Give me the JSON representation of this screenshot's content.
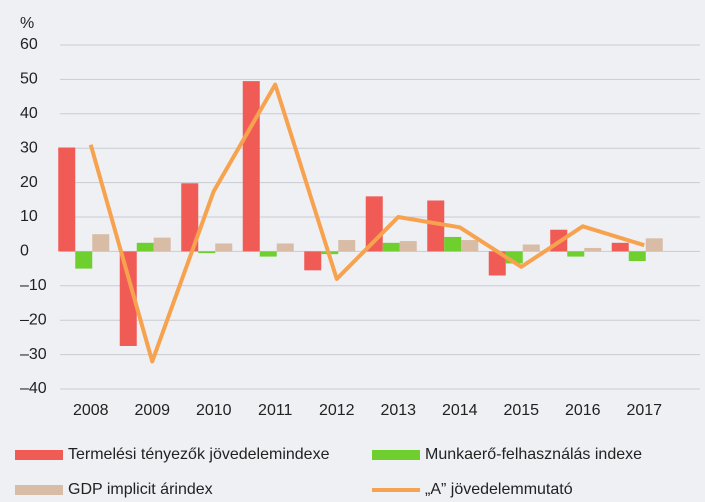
{
  "chart_data": {
    "type": "bar",
    "y_label": "%",
    "categories": [
      "2008",
      "2009",
      "2010",
      "2011",
      "2012",
      "2013",
      "2014",
      "2015",
      "2016",
      "2017"
    ],
    "series": [
      {
        "name": "Termelési tényezők jövedelemindexe",
        "color": "#f05b56",
        "values": [
          30.2,
          -27.5,
          19.8,
          49.5,
          -5.5,
          16,
          14.8,
          -7,
          6.3,
          2.5
        ]
      },
      {
        "name": "Munkaerő-felhasználás indexe",
        "color": "#6fcf2e",
        "values": [
          -5,
          2.5,
          -0.5,
          -1.5,
          -0.8,
          2.5,
          4.2,
          -3.5,
          -1.5,
          -2.8
        ]
      },
      {
        "name": "GDP implicit árindex",
        "color": "#d8bca6",
        "values": [
          5,
          4,
          2.3,
          2.3,
          3.3,
          3,
          3.3,
          2,
          1,
          3.8
        ]
      },
      {
        "name": "„A” jövedelemmutató",
        "color": "#f7a24f",
        "type": "line",
        "values": [
          31,
          -32,
          17.5,
          48.5,
          -8,
          10,
          7,
          -4.5,
          7.3,
          1.8
        ]
      }
    ],
    "ylim": [
      -40,
      60
    ],
    "yticks": [
      {
        "value": -40,
        "label": "–40"
      },
      {
        "value": -30,
        "label": "–30"
      },
      {
        "value": -20,
        "label": "–20"
      },
      {
        "value": -10,
        "label": "–10"
      },
      0,
      10,
      20,
      30,
      40,
      50,
      60
    ],
    "grid": true
  }
}
